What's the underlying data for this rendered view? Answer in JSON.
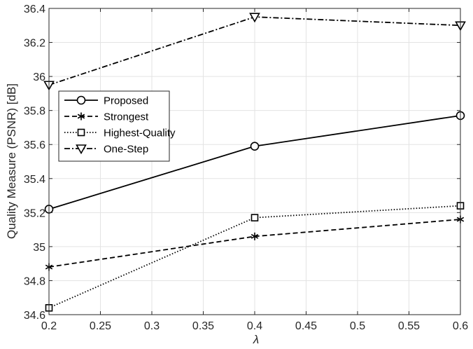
{
  "chart_data": {
    "type": "line",
    "xlabel": "λ",
    "ylabel": "Quality Measure (PSNR) [dB]",
    "xlim": [
      0.2,
      0.6
    ],
    "ylim": [
      34.6,
      36.4
    ],
    "xticks": [
      0.2,
      0.25,
      0.3,
      0.35,
      0.4,
      0.45,
      0.5,
      0.55,
      0.6
    ],
    "xtick_labels": [
      "0.2",
      "0.25",
      "0.3",
      "0.35",
      "0.4",
      "0.45",
      "0.5",
      "0.55",
      "0.6"
    ],
    "yticks": [
      34.6,
      34.8,
      35,
      35.2,
      35.4,
      35.6,
      35.8,
      36,
      36.2,
      36.4
    ],
    "ytick_labels": [
      "34.6",
      "34.8",
      "35",
      "35.2",
      "35.4",
      "35.6",
      "35.8",
      "36",
      "36.2",
      "36.4"
    ],
    "grid": true,
    "legend_position": "upper-left",
    "x": [
      0.2,
      0.4,
      0.6
    ],
    "series": [
      {
        "name": "Proposed",
        "values": [
          35.22,
          35.59,
          35.77
        ],
        "line_style": "solid",
        "marker": "circle",
        "color": "#000000"
      },
      {
        "name": "Strongest",
        "values": [
          34.88,
          35.06,
          35.16
        ],
        "line_style": "dashed",
        "marker": "asterisk",
        "color": "#000000"
      },
      {
        "name": "Highest-Quality",
        "values": [
          34.64,
          35.17,
          35.24
        ],
        "line_style": "dotted",
        "marker": "square",
        "color": "#000000"
      },
      {
        "name": "One-Step",
        "values": [
          35.95,
          36.35,
          36.3
        ],
        "line_style": "dashdot",
        "marker": "triangle-down",
        "color": "#000000"
      }
    ]
  }
}
